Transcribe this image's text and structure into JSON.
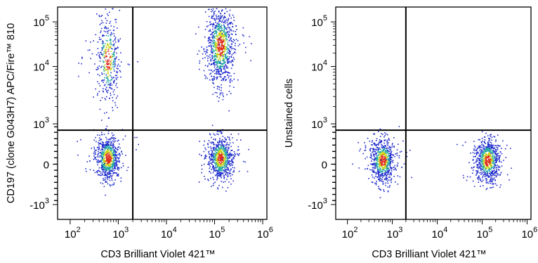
{
  "chart_data": [
    {
      "type": "scatter",
      "title": "",
      "xlabel": "CD3 Brilliant Violet 421™",
      "ylabel": "CD197 (clone G043H7) APC/Fire™ 810",
      "x_scale": "biexponential",
      "y_scale": "biexponential",
      "xlim": [
        "10^2",
        "10^6"
      ],
      "ylim": [
        "-10^3",
        "10^5"
      ],
      "x_tick_labels": [
        {
          "base": "10",
          "exp": "2"
        },
        {
          "base": "10",
          "exp": "3"
        },
        {
          "base": "10",
          "exp": "4"
        },
        {
          "base": "10",
          "exp": "5"
        },
        {
          "base": "10",
          "exp": "6"
        }
      ],
      "y_tick_labels": [
        {
          "base": "-10",
          "exp": "3"
        },
        {
          "base": "0",
          "exp": ""
        },
        {
          "base": "10",
          "exp": "3"
        },
        {
          "base": "10",
          "exp": "4"
        },
        {
          "base": "10",
          "exp": "5"
        }
      ],
      "quadrant_gate": {
        "x": 2000,
        "y": 800
      },
      "populations": [
        {
          "x_center": 600,
          "y_center": 150,
          "density": "high"
        },
        {
          "x_center": 600,
          "y_center": 15000,
          "density": "medium"
        },
        {
          "x_center": 130000,
          "y_center": 150,
          "density": "high"
        },
        {
          "x_center": 130000,
          "y_center": 30000,
          "density": "very high"
        }
      ],
      "colors": {
        "low": "#1f2ccc",
        "mid": "#22a8a0",
        "high": "#c9d61a",
        "peak": "#e0301e"
      }
    },
    {
      "type": "scatter",
      "title": "",
      "xlabel": "CD3 Brilliant Violet 421™",
      "ylabel": "Unstained cells",
      "x_scale": "biexponential",
      "y_scale": "biexponential",
      "xlim": [
        "10^2",
        "10^6"
      ],
      "ylim": [
        "-10^3",
        "10^5"
      ],
      "x_tick_labels": [
        {
          "base": "10",
          "exp": "2"
        },
        {
          "base": "10",
          "exp": "3"
        },
        {
          "base": "10",
          "exp": "4"
        },
        {
          "base": "10",
          "exp": "5"
        },
        {
          "base": "10",
          "exp": "6"
        }
      ],
      "y_tick_labels": [
        {
          "base": "-10",
          "exp": "3"
        },
        {
          "base": "0",
          "exp": ""
        },
        {
          "base": "10",
          "exp": "3"
        },
        {
          "base": "10",
          "exp": "4"
        },
        {
          "base": "10",
          "exp": "5"
        }
      ],
      "quadrant_gate": {
        "x": 2000,
        "y": 800
      },
      "populations": [
        {
          "x_center": 600,
          "y_center": 100,
          "density": "high"
        },
        {
          "x_center": 130000,
          "y_center": 100,
          "density": "high"
        }
      ],
      "colors": {
        "low": "#1f2ccc",
        "mid": "#22a8a0",
        "high": "#c9d61a",
        "peak": "#e0301e"
      }
    }
  ]
}
